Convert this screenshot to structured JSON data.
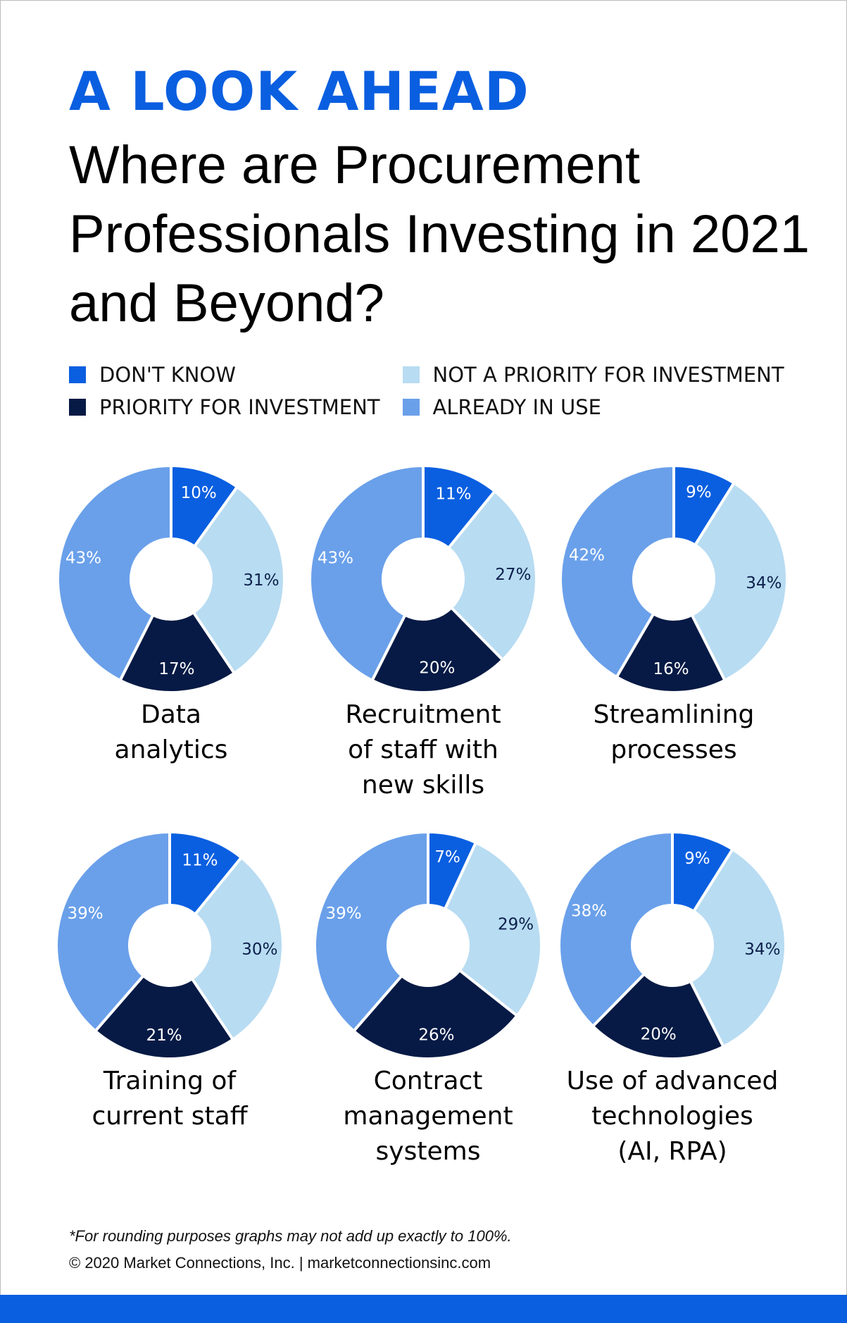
{
  "header": {
    "kicker": "A LOOK AHEAD",
    "title": "Where are Procurement Professionals Investing in 2021 and Beyond?"
  },
  "legend": [
    {
      "label": "DON'T KNOW",
      "color": "#0a5fe0"
    },
    {
      "label": "NOT A PRIORITY FOR INVESTMENT",
      "color": "#b8dcf2"
    },
    {
      "label": "PRIORITY FOR INVESTMENT",
      "color": "#061a45"
    },
    {
      "label": "ALREADY IN USE",
      "color": "#6aa0ea"
    }
  ],
  "chart_data": [
    {
      "type": "pie",
      "variant": "donut",
      "title": "Data analytics",
      "categories": [
        "DON'T KNOW",
        "NOT A PRIORITY FOR INVESTMENT",
        "PRIORITY FOR INVESTMENT",
        "ALREADY IN USE"
      ],
      "values": [
        10,
        31,
        17,
        43
      ],
      "labels": [
        "10%",
        "31%",
        "17%",
        "43%"
      ]
    },
    {
      "type": "pie",
      "variant": "donut",
      "title": "Recruitment of staff with new skills",
      "categories": [
        "DON'T KNOW",
        "NOT A PRIORITY FOR INVESTMENT",
        "PRIORITY FOR INVESTMENT",
        "ALREADY IN USE"
      ],
      "values": [
        11,
        27,
        20,
        43
      ],
      "labels": [
        "11%",
        "27%",
        "20%",
        "43%"
      ]
    },
    {
      "type": "pie",
      "variant": "donut",
      "title": "Streamlining processes",
      "categories": [
        "DON'T KNOW",
        "NOT A PRIORITY FOR INVESTMENT",
        "PRIORITY FOR INVESTMENT",
        "ALREADY IN USE"
      ],
      "values": [
        9,
        34,
        16,
        42
      ],
      "labels": [
        "9%",
        "34%",
        "16%",
        "42%"
      ]
    },
    {
      "type": "pie",
      "variant": "donut",
      "title": "Training of current staff",
      "categories": [
        "DON'T KNOW",
        "NOT A PRIORITY FOR INVESTMENT",
        "PRIORITY FOR INVESTMENT",
        "ALREADY IN USE"
      ],
      "values": [
        11,
        30,
        21,
        39
      ],
      "labels": [
        "11%",
        "30%",
        "21%",
        "39%"
      ]
    },
    {
      "type": "pie",
      "variant": "donut",
      "title": "Contract management systems",
      "categories": [
        "DON'T KNOW",
        "NOT A PRIORITY FOR INVESTMENT",
        "PRIORITY FOR INVESTMENT",
        "ALREADY IN USE"
      ],
      "values": [
        7,
        29,
        26,
        39
      ],
      "labels": [
        "7%",
        "29%",
        "26%",
        "39%"
      ]
    },
    {
      "type": "pie",
      "variant": "donut",
      "title": "Use of advanced technologies (AI, RPA)",
      "categories": [
        "DON'T KNOW",
        "NOT A PRIORITY FOR INVESTMENT",
        "PRIORITY FOR INVESTMENT",
        "ALREADY IN USE"
      ],
      "values": [
        9,
        34,
        20,
        38
      ],
      "labels": [
        "9%",
        "34%",
        "20%",
        "38%"
      ]
    }
  ],
  "footer": {
    "note": "*For rounding purposes graphs may not add up exactly to 100%.",
    "copyright": "© 2020 Market Connections, Inc.  |  marketconnectionsinc.com"
  }
}
